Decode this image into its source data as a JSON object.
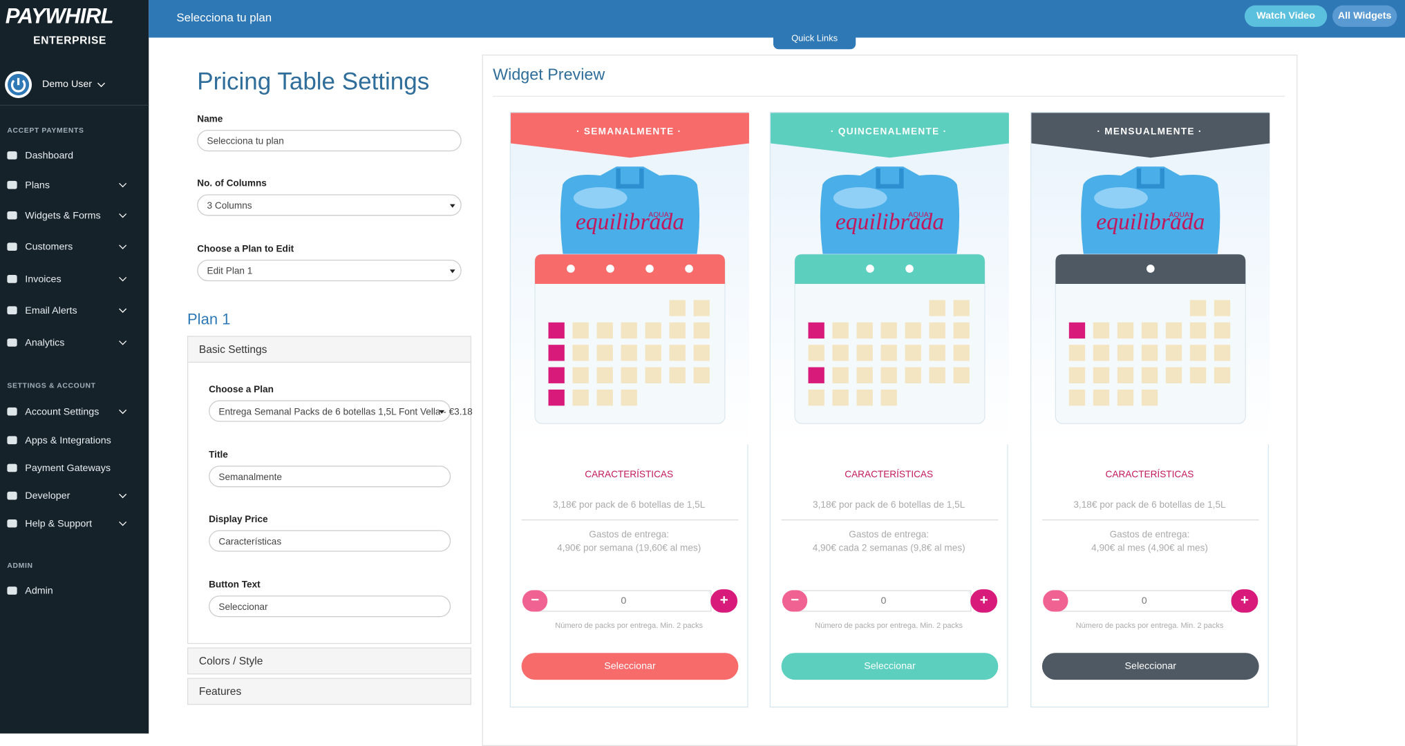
{
  "sidebar": {
    "logo": "PAYWHIRL",
    "edition": "ENTERPRISE",
    "user": "Demo User",
    "sections": [
      {
        "title": "ACCEPT PAYMENTS",
        "items": [
          "Dashboard",
          "Plans",
          "Widgets & Forms",
          "Customers",
          "Invoices",
          "Email Alerts",
          "Analytics"
        ]
      },
      {
        "title": "SETTINGS & ACCOUNT",
        "items": [
          "Account Settings",
          "Apps & Integrations",
          "Payment Gateways",
          "Developer",
          "Help & Support"
        ]
      },
      {
        "title": "ADMIN",
        "items": [
          "Admin"
        ]
      }
    ]
  },
  "header": {
    "title": "Selecciona tu plan",
    "buttons": [
      "Watch Video",
      "All Widgets"
    ],
    "quick_links": "Quick Links"
  },
  "settings": {
    "title": "Pricing Table Settings",
    "fields": [
      {
        "label": "Name",
        "value": "Selecciona tu plan"
      },
      {
        "label": "No. of Columns",
        "value": "3 Columns"
      },
      {
        "label": "Choose a Plan to Edit",
        "value": "Edit Plan 1"
      }
    ],
    "plan_title": "Plan 1",
    "panel": "Basic Settings",
    "panel_fields": [
      {
        "label": "Choose a Plan",
        "value": "Entrega Semanal Packs de 6 botellas 1,5L Font Vella - €3.18"
      },
      {
        "label": "Title",
        "value": "Semanalmente"
      },
      {
        "label": "Display Price",
        "value": "Características"
      },
      {
        "label": "Button Text",
        "value": "Seleccionar"
      }
    ],
    "collapsed": [
      "Colors / Style",
      "Features"
    ]
  },
  "preview": {
    "title": "Widget Preview",
    "brand": "equilibrada",
    "brand_sub": "AQUA",
    "plans": [
      {
        "header": "· SEMANALMENTE ·",
        "color": "#f76b6b",
        "features": "CARACTERÍSTICAS",
        "price": "3,18€ por pack de 6 botellas de 1,5L",
        "delivery": [
          "Gastos de entrega:",
          "4,90€ por semana (19,60€ al mes)"
        ],
        "quantity": "0",
        "note": "Número de packs por entrega. Min. 2 packs",
        "button": "Seleccionar"
      },
      {
        "header": "· QUINCENALMENTE ·",
        "color": "#5ccfbf",
        "features": "CARACTERÍSTICAS",
        "price": "3,18€ por pack de 6 botellas de 1,5L",
        "delivery": [
          "Gastos de entrega:",
          "4,90€ cada 2 semanas (9,8€ al mes)"
        ],
        "quantity": "0",
        "note": "Número de packs por entrega. Min. 2 packs",
        "button": "Seleccionar"
      },
      {
        "header": "· MENSUALMENTE ·",
        "color": "#4f5963",
        "features": "CARACTERÍSTICAS",
        "price": "3,18€ por pack de 6 botellas de 1,5L",
        "delivery": [
          "Gastos de entrega:",
          "4,90€ al mes (4,90€ al mes)"
        ],
        "quantity": "0",
        "note": "Número de packs por entrega. Min. 2 packs",
        "button": "Seleccionar"
      }
    ]
  }
}
